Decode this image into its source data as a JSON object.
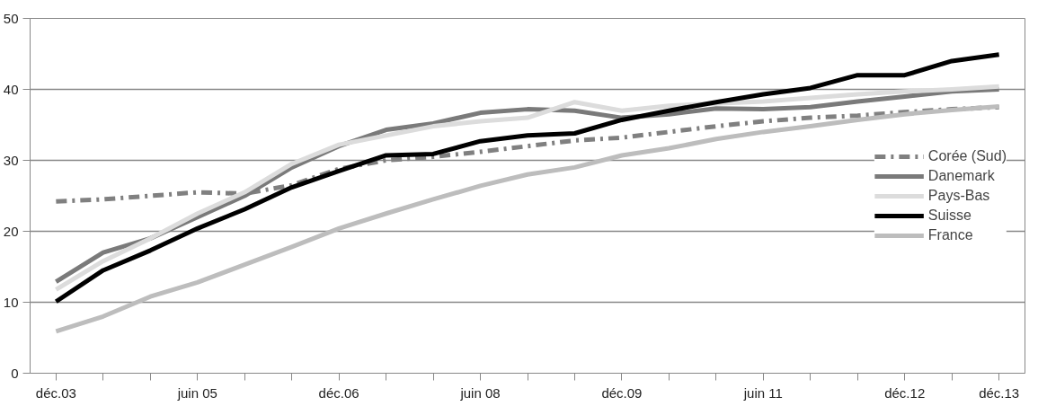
{
  "chart_data": {
    "type": "line",
    "categories": [
      "déc.03",
      null,
      null,
      "juin 05",
      null,
      null,
      "déc.06",
      null,
      null,
      "juin 08",
      null,
      null,
      "déc.09",
      null,
      null,
      "juin 11",
      null,
      null,
      "déc.12",
      null,
      "déc.13"
    ],
    "ylim": [
      0,
      50
    ],
    "yticks": [
      0,
      10,
      20,
      30,
      40,
      50
    ],
    "grid": "y",
    "legend": "right",
    "marker": "none",
    "series": [
      {
        "name": "Corée (Sud)",
        "color": "#808080",
        "line_style": "dashdot",
        "values": [
          24.2,
          24.5,
          25.0,
          25.5,
          25.3,
          26.5,
          28.8,
          30.0,
          30.5,
          31.2,
          32.0,
          32.8,
          33.2,
          34.0,
          34.8,
          35.5,
          36.0,
          36.3,
          36.8,
          37.2,
          37.5
        ]
      },
      {
        "name": "Danemark",
        "color": "#7a7a7a",
        "line_style": "solid",
        "values": [
          12.9,
          17.0,
          19.0,
          22.0,
          25.0,
          29.0,
          32.0,
          34.3,
          35.2,
          36.7,
          37.2,
          37.0,
          36.0,
          36.5,
          37.3,
          37.2,
          37.5,
          38.3,
          39.0,
          39.7,
          40.0
        ]
      },
      {
        "name": "Pays-Bas",
        "color": "#dcdcdc",
        "line_style": "solid",
        "values": [
          11.8,
          15.8,
          19.0,
          22.5,
          25.5,
          29.5,
          32.2,
          33.5,
          34.8,
          35.5,
          36.0,
          38.2,
          37.0,
          37.7,
          38.0,
          38.3,
          38.8,
          39.3,
          39.7,
          40.0,
          40.4
        ]
      },
      {
        "name": "Suisse",
        "color": "#000000",
        "line_style": "solid",
        "values": [
          10.1,
          14.5,
          17.3,
          20.4,
          23.1,
          26.2,
          28.5,
          30.7,
          30.9,
          32.7,
          33.5,
          33.8,
          35.7,
          37.0,
          38.2,
          39.3,
          40.2,
          42.0,
          42.0,
          44.0,
          44.9
        ]
      },
      {
        "name": "France",
        "color": "#bdbdbd",
        "line_style": "solid",
        "values": [
          5.9,
          8.0,
          10.8,
          12.8,
          15.3,
          17.8,
          20.4,
          22.5,
          24.5,
          26.4,
          28.0,
          29.0,
          30.7,
          31.7,
          33.0,
          34.0,
          34.8,
          35.7,
          36.5,
          37.1,
          37.6
        ]
      }
    ]
  }
}
